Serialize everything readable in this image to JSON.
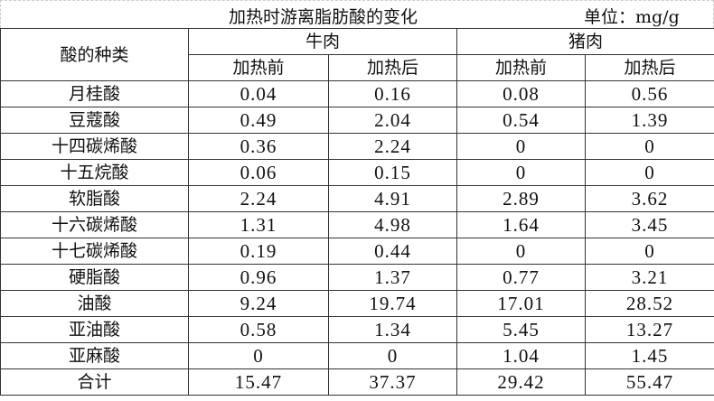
{
  "title": "加热时游离脂肪酸的变化",
  "unit": "单位：mg/g",
  "header": {
    "acid_type": "酸的种类",
    "groups": [
      "牛肉",
      "猪肉"
    ],
    "subcolumns": [
      "加热前",
      "加热后",
      "加热前",
      "加热后"
    ]
  },
  "rows": [
    {
      "name": "月桂酸",
      "values": [
        "0.04",
        "0.16",
        "0.08",
        "0.56"
      ]
    },
    {
      "name": "豆蔻酸",
      "values": [
        "0.49",
        "2.04",
        "0.54",
        "1.39"
      ]
    },
    {
      "name": "十四碳烯酸",
      "values": [
        "0.36",
        "2.24",
        "0",
        "0"
      ]
    },
    {
      "name": "十五烷酸",
      "values": [
        "0.06",
        "0.15",
        "0",
        "0"
      ]
    },
    {
      "name": "软脂酸",
      "values": [
        "2.24",
        "4.91",
        "2.89",
        "3.62"
      ]
    },
    {
      "name": "十六碳烯酸",
      "values": [
        "1.31",
        "4.98",
        "1.64",
        "3.45"
      ]
    },
    {
      "name": "十七碳烯酸",
      "values": [
        "0.19",
        "0.44",
        "0",
        "0"
      ]
    },
    {
      "name": "硬脂酸",
      "values": [
        "0.96",
        "1.37",
        "0.77",
        "3.21"
      ]
    },
    {
      "name": "油酸",
      "values": [
        "9.24",
        "19.74",
        "17.01",
        "28.52"
      ]
    },
    {
      "name": "亚油酸",
      "values": [
        "0.58",
        "1.34",
        "5.45",
        "13.27"
      ]
    },
    {
      "name": "亚麻酸",
      "values": [
        "0",
        "0",
        "1.04",
        "1.45"
      ]
    },
    {
      "name": "合计",
      "values": [
        "15.47",
        "37.37",
        "29.42",
        "55.47"
      ]
    }
  ]
}
